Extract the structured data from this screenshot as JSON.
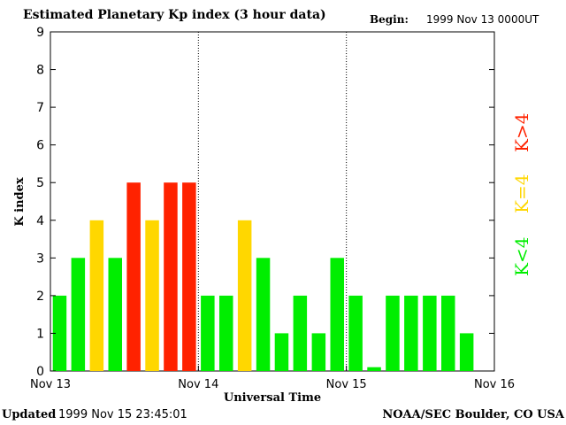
{
  "header": {
    "title": "Estimated Planetary Kp index (3 hour data)",
    "begin_label": "Begin:",
    "begin_value": "1999 Nov 13 0000UT"
  },
  "footer": {
    "updated_label": "Updated",
    "updated_value": "1999 Nov 15 23:45:01",
    "credit": "NOAA/SEC Boulder, CO USA"
  },
  "legend": {
    "items": [
      {
        "label": "K<4",
        "color": "#00ee00"
      },
      {
        "label": "K=4",
        "color": "#ffd700"
      },
      {
        "label": "K>4",
        "color": "#ff2200"
      }
    ]
  },
  "chart_data": {
    "type": "bar",
    "title": "Estimated Planetary Kp index (3 hour data)",
    "xlabel": "Universal Time",
    "ylabel": "K index",
    "ylim": [
      0,
      9
    ],
    "yticks": [
      0,
      1,
      2,
      3,
      4,
      5,
      6,
      7,
      8,
      9
    ],
    "xticks": [
      "Nov 13",
      "Nov 14",
      "Nov 15",
      "Nov 16"
    ],
    "bars_per_day": 8,
    "values": [
      2,
      3,
      4,
      3,
      5,
      4,
      5,
      5,
      2,
      2,
      4,
      3,
      1,
      2,
      1,
      3,
      2,
      0.1,
      2,
      2,
      2,
      2,
      1
    ],
    "colors": {
      "low": "#00ee00",
      "equal": "#ffd700",
      "high": "#ff2200"
    },
    "grid": false,
    "day_separators": "dotted"
  }
}
